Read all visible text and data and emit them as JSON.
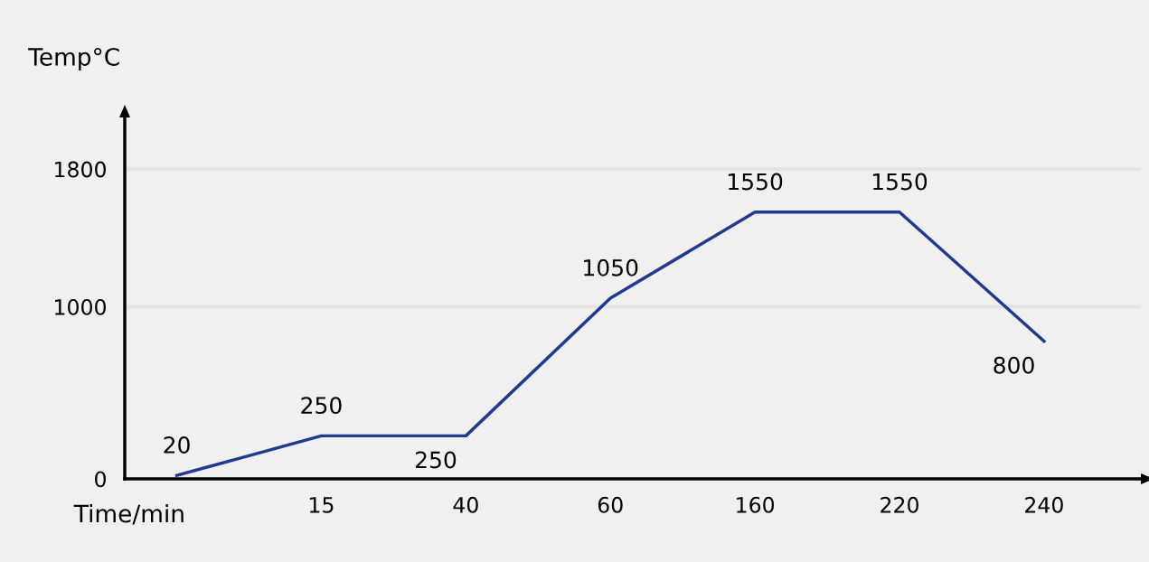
{
  "chart_data": {
    "type": "line",
    "xlabel": "Time/min",
    "ylabel": "Temp°C",
    "categories": [
      null,
      "15",
      "40",
      "60",
      "160",
      "220",
      "240"
    ],
    "series": [
      {
        "color": "#1f3a8f",
        "values": [
          20,
          250,
          250,
          1050,
          1550,
          1550,
          800
        ]
      }
    ],
    "ylim": [
      0,
      2100
    ],
    "yticks": [
      0,
      1000,
      1800
    ],
    "grid": "y",
    "data_labels": true,
    "marker": "none",
    "line_style": "solid"
  }
}
